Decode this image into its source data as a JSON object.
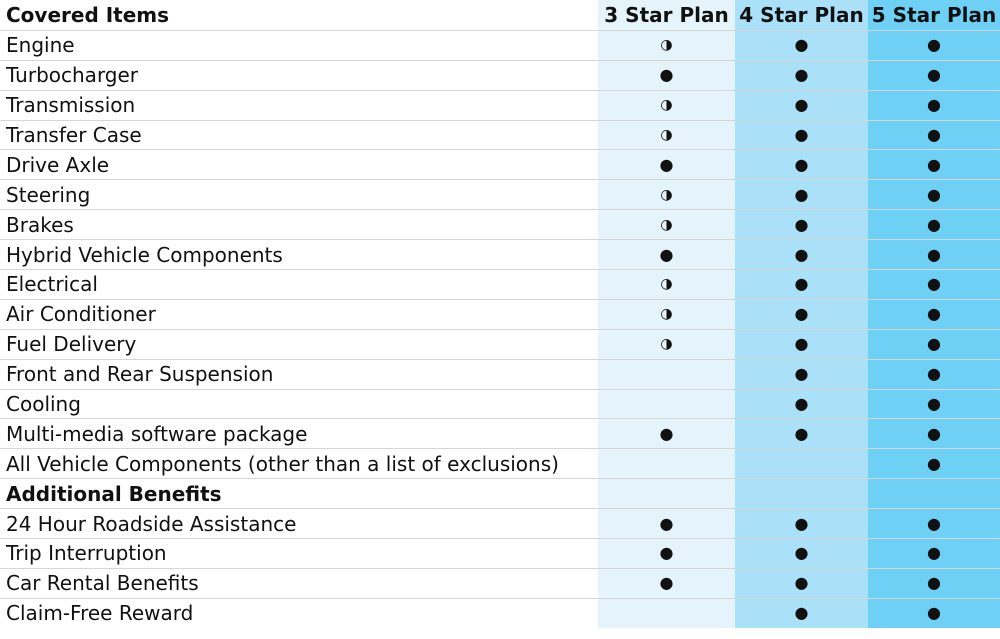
{
  "header": {
    "items_label": "Covered Items",
    "plans": [
      "3 Star Plan",
      "4 Star Plan",
      "5 Star Plan"
    ]
  },
  "symbols": {
    "full": "●",
    "partial": "◑",
    "none": ""
  },
  "colors": {
    "plan3": "#e5f4fb",
    "plan4": "#abe1f8",
    "plan5": "#6fd0f6",
    "divider": "#d6d6d6"
  },
  "rows": [
    {
      "label": "Engine",
      "marks": [
        "partial",
        "full",
        "full"
      ]
    },
    {
      "label": "Turbocharger",
      "marks": [
        "full",
        "full",
        "full"
      ]
    },
    {
      "label": "Transmission",
      "marks": [
        "partial",
        "full",
        "full"
      ]
    },
    {
      "label": "Transfer Case",
      "marks": [
        "partial",
        "full",
        "full"
      ]
    },
    {
      "label": "Drive Axle",
      "marks": [
        "full",
        "full",
        "full"
      ]
    },
    {
      "label": "Steering",
      "marks": [
        "partial",
        "full",
        "full"
      ]
    },
    {
      "label": "Brakes",
      "marks": [
        "partial",
        "full",
        "full"
      ]
    },
    {
      "label": "Hybrid Vehicle Components",
      "marks": [
        "full",
        "full",
        "full"
      ]
    },
    {
      "label": "Electrical",
      "marks": [
        "partial",
        "full",
        "full"
      ]
    },
    {
      "label": "Air Conditioner",
      "marks": [
        "partial",
        "full",
        "full"
      ]
    },
    {
      "label": "Fuel Delivery",
      "marks": [
        "partial",
        "full",
        "full"
      ]
    },
    {
      "label": "Front and Rear Suspension",
      "marks": [
        "none",
        "full",
        "full"
      ]
    },
    {
      "label": "Cooling",
      "marks": [
        "none",
        "full",
        "full"
      ]
    },
    {
      "label": "Multi-media software package",
      "marks": [
        "full",
        "full",
        "full"
      ]
    },
    {
      "label": "All Vehicle Components (other than a list of exclusions)",
      "marks": [
        "none",
        "none",
        "full"
      ]
    },
    {
      "label": "Additional Benefits",
      "section": true,
      "marks": [
        "none",
        "none",
        "none"
      ]
    },
    {
      "label": "24 Hour Roadside Assistance",
      "marks": [
        "full",
        "full",
        "full"
      ]
    },
    {
      "label": "Trip Interruption",
      "marks": [
        "full",
        "full",
        "full"
      ]
    },
    {
      "label": "Car Rental Benefits",
      "marks": [
        "full",
        "full",
        "full"
      ]
    },
    {
      "label": "Claim-Free Reward",
      "marks": [
        "none",
        "full",
        "full"
      ]
    }
  ]
}
